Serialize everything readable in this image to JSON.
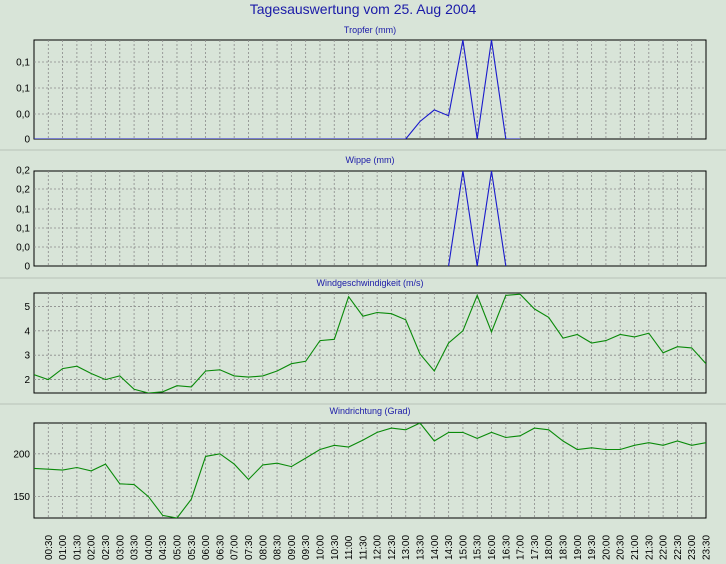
{
  "title": "Tagesauswertung vom 25. Aug 2004",
  "colors": {
    "background": "#d8e4d8",
    "blue_line": "#1a1acc",
    "green_line": "#0a8a0a",
    "title": "#1a1aa8"
  },
  "x_labels": [
    "00:30",
    "01:00",
    "01:30",
    "02:00",
    "02:30",
    "03:00",
    "03:30",
    "04:00",
    "04:30",
    "05:00",
    "05:30",
    "06:00",
    "06:30",
    "07:00",
    "07:30",
    "08:00",
    "08:30",
    "09:00",
    "09:30",
    "10:00",
    "10:30",
    "11:00",
    "11:30",
    "12:00",
    "12:30",
    "13:00",
    "13:30",
    "14:00",
    "14:30",
    "15:00",
    "15:30",
    "16:00",
    "16:30",
    "17:00",
    "17:30",
    "18:00",
    "18:30",
    "19:00",
    "19:30",
    "20:00",
    "20:30",
    "21:00",
    "21:30",
    "22:00",
    "22:30",
    "23:00",
    "23:30"
  ],
  "chart_data": [
    {
      "type": "line",
      "title": "Tropfer (mm)",
      "x": [
        "00:00",
        "00:30",
        "01:00",
        "01:30",
        "02:00",
        "02:30",
        "03:00",
        "03:30",
        "04:00",
        "04:30",
        "05:00",
        "05:30",
        "06:00",
        "06:30",
        "07:00",
        "07:30",
        "08:00",
        "08:30",
        "09:00",
        "09:30",
        "10:00",
        "10:30",
        "11:00",
        "11:30",
        "12:00",
        "12:30",
        "13:00",
        "13:30",
        "14:00",
        "14:30",
        "15:00",
        "15:30",
        "16:00",
        "16:30",
        "17:00"
      ],
      "values": [
        0,
        0,
        0,
        0,
        0,
        0,
        0,
        0,
        0,
        0,
        0,
        0,
        0,
        0,
        0,
        0,
        0,
        0,
        0,
        0,
        0,
        0,
        0,
        0,
        0,
        0,
        0,
        0.03,
        0.05,
        0.04,
        0.17,
        0,
        0.17,
        0,
        0
      ],
      "yticks": [
        "0",
        "0,0",
        "0,1",
        "0,1"
      ],
      "ylim": [
        0,
        0.17
      ],
      "grid": true
    },
    {
      "type": "line",
      "title": "Wippe (mm)",
      "x": [
        "14:30",
        "15:00",
        "15:30",
        "16:00",
        "16:30"
      ],
      "values": [
        0,
        0.3,
        0,
        0.3,
        0
      ],
      "yticks": [
        "0",
        "0,0",
        "0,1",
        "0,1",
        "0,2",
        "0,2"
      ],
      "ylim": [
        0,
        0.3
      ],
      "grid": true
    },
    {
      "type": "line",
      "title": "Windgeschwindigkeit (m/s)",
      "x": [
        "00:00",
        "00:30",
        "01:00",
        "01:30",
        "02:00",
        "02:30",
        "03:00",
        "03:30",
        "04:00",
        "04:30",
        "05:00",
        "05:30",
        "06:00",
        "06:30",
        "07:00",
        "07:30",
        "08:00",
        "08:30",
        "09:00",
        "09:30",
        "10:00",
        "10:30",
        "11:00",
        "11:30",
        "12:00",
        "12:30",
        "13:00",
        "13:30",
        "14:00",
        "14:30",
        "15:00",
        "15:30",
        "16:00",
        "16:30",
        "17:00",
        "17:30",
        "18:00",
        "18:30",
        "19:00",
        "19:30",
        "20:00",
        "20:30",
        "21:00",
        "21:30",
        "22:00",
        "22:30",
        "23:00",
        "23:30"
      ],
      "values": [
        2.2,
        2.0,
        2.45,
        2.55,
        2.25,
        2.0,
        2.15,
        1.6,
        1.45,
        1.5,
        1.75,
        1.7,
        2.35,
        2.4,
        2.15,
        2.1,
        2.15,
        2.35,
        2.65,
        2.75,
        3.6,
        3.65,
        5.4,
        4.6,
        4.75,
        4.7,
        4.45,
        3.05,
        2.35,
        3.5,
        4.0,
        5.45,
        3.95,
        5.45,
        5.5,
        4.9,
        4.55,
        3.7,
        3.85,
        3.5,
        3.6,
        3.85,
        3.75,
        3.9,
        3.1,
        3.35,
        3.3,
        2.65
      ],
      "yticks": [
        "2",
        "3",
        "4",
        "5"
      ],
      "ylim": [
        1.45,
        5.55
      ],
      "grid": true
    },
    {
      "type": "line",
      "title": "Windrichtung (Grad)",
      "x": [
        "00:00",
        "00:30",
        "01:00",
        "01:30",
        "02:00",
        "02:30",
        "03:00",
        "03:30",
        "04:00",
        "04:30",
        "05:00",
        "05:30",
        "06:00",
        "06:30",
        "07:00",
        "07:30",
        "08:00",
        "08:30",
        "09:00",
        "09:30",
        "10:00",
        "10:30",
        "11:00",
        "11:30",
        "12:00",
        "12:30",
        "13:00",
        "13:30",
        "14:00",
        "14:30",
        "15:00",
        "15:30",
        "16:00",
        "16:30",
        "17:00",
        "17:30",
        "18:00",
        "18:30",
        "19:00",
        "19:30",
        "20:00",
        "20:30",
        "21:00",
        "21:30",
        "22:00",
        "22:30",
        "23:00",
        "23:30"
      ],
      "values": [
        183,
        182,
        181,
        184,
        180,
        188,
        165,
        164,
        150,
        128,
        125,
        147,
        197,
        200,
        188,
        170,
        187,
        189,
        185,
        195,
        205,
        210,
        208,
        216,
        225,
        230,
        228,
        236,
        215,
        225,
        225,
        218,
        225,
        219,
        221,
        230,
        228,
        215,
        205,
        207,
        205,
        205,
        210,
        213,
        210,
        215,
        210,
        213
      ],
      "yticks": [
        "150",
        "200"
      ],
      "ylim": [
        125,
        236
      ],
      "grid": true
    }
  ]
}
